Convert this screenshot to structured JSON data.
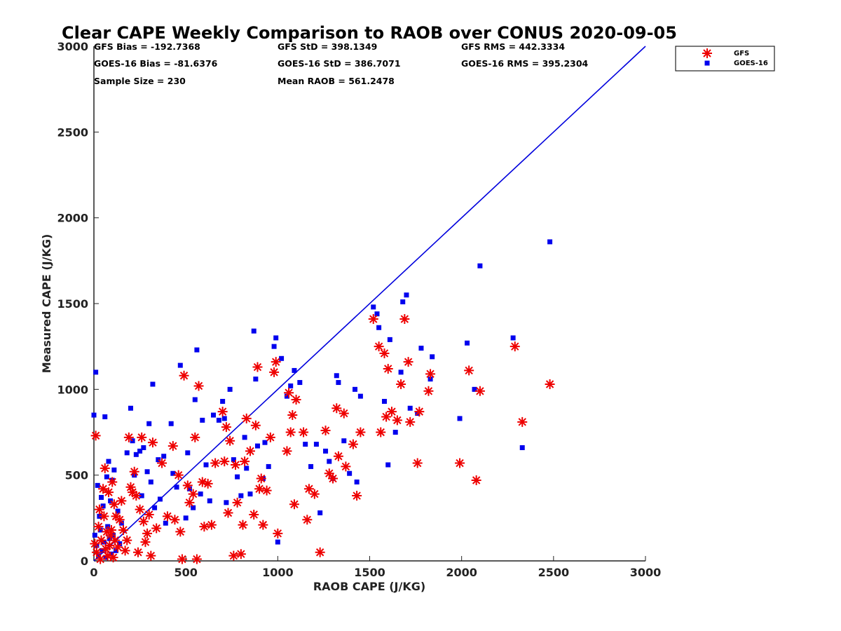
{
  "chart_data": {
    "type": "scatter",
    "title": "Clear CAPE Weekly Comparison to RAOB over CONUS 2020-09-05",
    "xlabel": "RAOB CAPE (J/KG)",
    "ylabel": "Measured CAPE (J/KG)",
    "xlim": [
      0,
      3000
    ],
    "ylim": [
      0,
      3000
    ],
    "xticks": [
      "0",
      "500",
      "1000",
      "1500",
      "2000",
      "2500",
      "3000"
    ],
    "yticks": [
      "0",
      "500",
      "1000",
      "1500",
      "2000",
      "2500",
      "3000"
    ],
    "grid": false,
    "legend_position": "top-right",
    "stats": [
      "GFS Bias = -192.7368",
      "GFS StD = 398.1349",
      "GFS RMS = 442.3334",
      "GOES-16 Bias = -81.6376",
      "GOES-16 StD = 386.7071",
      "GOES-16 RMS = 395.2304",
      "Sample Size = 230",
      "Mean RAOB = 561.2478"
    ],
    "reference_line": {
      "x": [
        0,
        3000
      ],
      "y": [
        0,
        3000
      ],
      "color": "#0000dd"
    },
    "series": [
      {
        "name": "GFS",
        "marker": "asterisk",
        "color": "#ee0000",
        "points": [
          [
            10,
            730
          ],
          [
            30,
            300
          ],
          [
            50,
            420
          ],
          [
            60,
            540
          ],
          [
            70,
            170
          ],
          [
            80,
            400
          ],
          [
            90,
            150
          ],
          [
            100,
            460
          ],
          [
            110,
            330
          ],
          [
            120,
            260
          ],
          [
            150,
            350
          ],
          [
            170,
            60
          ],
          [
            190,
            720
          ],
          [
            200,
            430
          ],
          [
            210,
            400
          ],
          [
            220,
            520
          ],
          [
            230,
            380
          ],
          [
            250,
            300
          ],
          [
            260,
            720
          ],
          [
            270,
            230
          ],
          [
            290,
            160
          ],
          [
            300,
            270
          ],
          [
            320,
            690
          ],
          [
            340,
            190
          ],
          [
            370,
            570
          ],
          [
            400,
            260
          ],
          [
            430,
            670
          ],
          [
            440,
            240
          ],
          [
            460,
            500
          ],
          [
            470,
            170
          ],
          [
            480,
            10
          ],
          [
            490,
            1080
          ],
          [
            510,
            440
          ],
          [
            520,
            340
          ],
          [
            540,
            390
          ],
          [
            550,
            720
          ],
          [
            560,
            10
          ],
          [
            570,
            1020
          ],
          [
            590,
            460
          ],
          [
            600,
            200
          ],
          [
            620,
            450
          ],
          [
            640,
            210
          ],
          [
            660,
            570
          ],
          [
            700,
            870
          ],
          [
            710,
            580
          ],
          [
            720,
            780
          ],
          [
            730,
            280
          ],
          [
            740,
            700
          ],
          [
            760,
            30
          ],
          [
            770,
            560
          ],
          [
            780,
            340
          ],
          [
            800,
            40
          ],
          [
            810,
            210
          ],
          [
            820,
            580
          ],
          [
            830,
            830
          ],
          [
            850,
            640
          ],
          [
            870,
            270
          ],
          [
            880,
            790
          ],
          [
            890,
            1130
          ],
          [
            900,
            420
          ],
          [
            910,
            480
          ],
          [
            920,
            210
          ],
          [
            940,
            410
          ],
          [
            960,
            720
          ],
          [
            980,
            1100
          ],
          [
            990,
            1160
          ],
          [
            1000,
            160
          ],
          [
            1050,
            640
          ],
          [
            1060,
            980
          ],
          [
            1070,
            750
          ],
          [
            1080,
            850
          ],
          [
            1090,
            330
          ],
          [
            1100,
            940
          ],
          [
            1140,
            750
          ],
          [
            1160,
            240
          ],
          [
            1170,
            420
          ],
          [
            1200,
            390
          ],
          [
            1230,
            50
          ],
          [
            1260,
            760
          ],
          [
            1280,
            510
          ],
          [
            1300,
            480
          ],
          [
            1320,
            890
          ],
          [
            1330,
            610
          ],
          [
            1360,
            860
          ],
          [
            1370,
            550
          ],
          [
            1410,
            680
          ],
          [
            1430,
            380
          ],
          [
            1450,
            750
          ],
          [
            1520,
            1410
          ],
          [
            1550,
            1250
          ],
          [
            1560,
            750
          ],
          [
            1580,
            1210
          ],
          [
            1590,
            840
          ],
          [
            1600,
            1120
          ],
          [
            1620,
            870
          ],
          [
            1650,
            820
          ],
          [
            1670,
            1030
          ],
          [
            1690,
            1410
          ],
          [
            1710,
            1160
          ],
          [
            1720,
            810
          ],
          [
            1760,
            570
          ],
          [
            1770,
            870
          ],
          [
            1820,
            990
          ],
          [
            1830,
            1090
          ],
          [
            1990,
            570
          ],
          [
            2040,
            1110
          ],
          [
            2080,
            470
          ],
          [
            2100,
            990
          ],
          [
            2290,
            1250
          ],
          [
            2330,
            810
          ],
          [
            2480,
            1030
          ],
          [
            5,
            100
          ],
          [
            15,
            50
          ],
          [
            25,
            200
          ],
          [
            35,
            10
          ],
          [
            40,
            120
          ],
          [
            55,
            260
          ],
          [
            65,
            70
          ],
          [
            75,
            30
          ],
          [
            85,
            90
          ],
          [
            95,
            180
          ],
          [
            105,
            20
          ],
          [
            115,
            120
          ],
          [
            130,
            80
          ],
          [
            140,
            240
          ],
          [
            160,
            180
          ],
          [
            180,
            120
          ],
          [
            240,
            50
          ],
          [
            280,
            110
          ],
          [
            310,
            30
          ]
        ]
      },
      {
        "name": "GOES-16",
        "marker": "square",
        "color": "#0000ee",
        "points": [
          [
            0,
            850
          ],
          [
            10,
            1100
          ],
          [
            20,
            440
          ],
          [
            30,
            260
          ],
          [
            40,
            370
          ],
          [
            50,
            320
          ],
          [
            60,
            840
          ],
          [
            70,
            490
          ],
          [
            80,
            580
          ],
          [
            90,
            350
          ],
          [
            100,
            470
          ],
          [
            110,
            530
          ],
          [
            130,
            290
          ],
          [
            150,
            220
          ],
          [
            180,
            630
          ],
          [
            200,
            890
          ],
          [
            210,
            700
          ],
          [
            220,
            500
          ],
          [
            230,
            620
          ],
          [
            250,
            640
          ],
          [
            260,
            380
          ],
          [
            270,
            660
          ],
          [
            290,
            520
          ],
          [
            300,
            800
          ],
          [
            310,
            460
          ],
          [
            320,
            1030
          ],
          [
            330,
            310
          ],
          [
            350,
            590
          ],
          [
            360,
            360
          ],
          [
            380,
            610
          ],
          [
            390,
            220
          ],
          [
            420,
            800
          ],
          [
            430,
            510
          ],
          [
            450,
            430
          ],
          [
            470,
            1140
          ],
          [
            500,
            250
          ],
          [
            510,
            630
          ],
          [
            520,
            420
          ],
          [
            540,
            310
          ],
          [
            550,
            940
          ],
          [
            560,
            1230
          ],
          [
            580,
            390
          ],
          [
            590,
            820
          ],
          [
            610,
            560
          ],
          [
            630,
            350
          ],
          [
            650,
            850
          ],
          [
            680,
            820
          ],
          [
            700,
            930
          ],
          [
            710,
            830
          ],
          [
            720,
            340
          ],
          [
            740,
            1000
          ],
          [
            760,
            590
          ],
          [
            780,
            490
          ],
          [
            800,
            380
          ],
          [
            820,
            720
          ],
          [
            830,
            540
          ],
          [
            850,
            390
          ],
          [
            870,
            1340
          ],
          [
            880,
            1060
          ],
          [
            890,
            670
          ],
          [
            920,
            480
          ],
          [
            930,
            690
          ],
          [
            950,
            550
          ],
          [
            980,
            1250
          ],
          [
            990,
            1300
          ],
          [
            1000,
            110
          ],
          [
            1020,
            1180
          ],
          [
            1050,
            960
          ],
          [
            1070,
            1020
          ],
          [
            1090,
            1110
          ],
          [
            1120,
            1040
          ],
          [
            1150,
            680
          ],
          [
            1180,
            550
          ],
          [
            1210,
            680
          ],
          [
            1230,
            280
          ],
          [
            1260,
            640
          ],
          [
            1280,
            580
          ],
          [
            1300,
            480
          ],
          [
            1320,
            1080
          ],
          [
            1330,
            1040
          ],
          [
            1360,
            700
          ],
          [
            1390,
            510
          ],
          [
            1420,
            1000
          ],
          [
            1430,
            460
          ],
          [
            1450,
            960
          ],
          [
            1520,
            1480
          ],
          [
            1540,
            1440
          ],
          [
            1550,
            1360
          ],
          [
            1580,
            930
          ],
          [
            1600,
            560
          ],
          [
            1610,
            1290
          ],
          [
            1640,
            750
          ],
          [
            1670,
            1100
          ],
          [
            1680,
            1510
          ],
          [
            1700,
            1550
          ],
          [
            1720,
            890
          ],
          [
            1760,
            860
          ],
          [
            1780,
            1240
          ],
          [
            1830,
            1060
          ],
          [
            1840,
            1190
          ],
          [
            1990,
            830
          ],
          [
            2030,
            1270
          ],
          [
            2070,
            1000
          ],
          [
            2100,
            1720
          ],
          [
            2280,
            1300
          ],
          [
            2330,
            660
          ],
          [
            2480,
            1860
          ],
          [
            5,
            150
          ],
          [
            15,
            90
          ],
          [
            25,
            30
          ],
          [
            35,
            180
          ],
          [
            45,
            60
          ],
          [
            55,
            110
          ],
          [
            65,
            20
          ],
          [
            75,
            200
          ],
          [
            85,
            130
          ],
          [
            95,
            40
          ],
          [
            105,
            150
          ],
          [
            120,
            60
          ],
          [
            140,
            100
          ]
        ]
      }
    ]
  }
}
